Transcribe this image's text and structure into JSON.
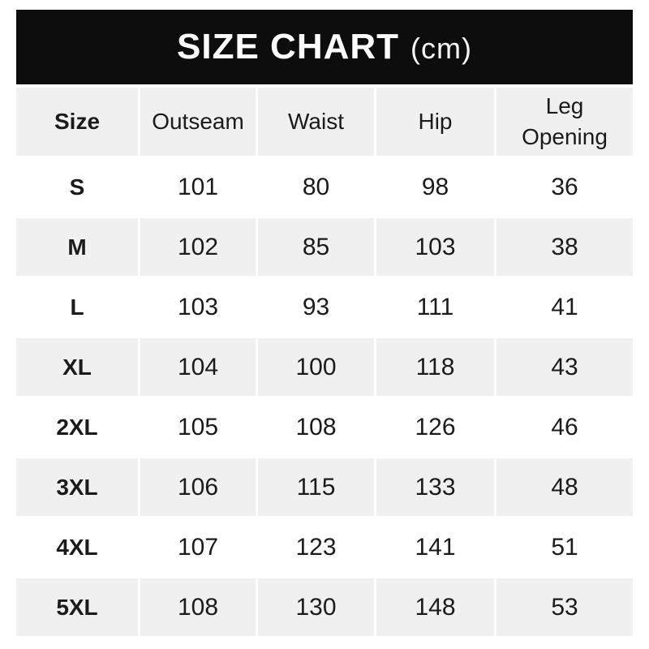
{
  "title": {
    "main": "SIZE CHART",
    "unit": "(cm)"
  },
  "columns": [
    "Size",
    "Outseam",
    "Waist",
    "Hip",
    "Leg Opening"
  ],
  "rows": [
    {
      "size": "S",
      "values": [
        101,
        80,
        98,
        36
      ]
    },
    {
      "size": "M",
      "values": [
        102,
        85,
        103,
        38
      ]
    },
    {
      "size": "L",
      "values": [
        103,
        93,
        111,
        41
      ]
    },
    {
      "size": "XL",
      "values": [
        104,
        100,
        118,
        43
      ]
    },
    {
      "size": "2XL",
      "values": [
        105,
        108,
        126,
        46
      ]
    },
    {
      "size": "3XL",
      "values": [
        106,
        115,
        133,
        48
      ]
    },
    {
      "size": "4XL",
      "values": [
        107,
        123,
        141,
        51
      ]
    },
    {
      "size": "5XL",
      "values": [
        108,
        130,
        148,
        53
      ]
    }
  ],
  "colors": {
    "title_bg": "#0d0d0d",
    "title_text": "#ffffff",
    "alt_row_bg": "#f0f0f0",
    "row_bg": "#ffffff",
    "text": "#1b1b1b"
  },
  "chart_data": {
    "type": "table",
    "title": "SIZE CHART (cm)",
    "units": "cm",
    "columns": [
      "Size",
      "Outseam",
      "Waist",
      "Hip",
      "Leg Opening"
    ],
    "rows": [
      [
        "S",
        101,
        80,
        98,
        36
      ],
      [
        "M",
        102,
        85,
        103,
        38
      ],
      [
        "L",
        103,
        93,
        111,
        41
      ],
      [
        "XL",
        104,
        100,
        118,
        43
      ],
      [
        "2XL",
        105,
        108,
        126,
        46
      ],
      [
        "3XL",
        106,
        115,
        133,
        48
      ],
      [
        "4XL",
        107,
        123,
        141,
        51
      ],
      [
        "5XL",
        108,
        130,
        148,
        53
      ]
    ],
    "layout": {
      "header_row_shaded": true,
      "alternating_rows": true,
      "grid": "white gutters between cells"
    }
  }
}
